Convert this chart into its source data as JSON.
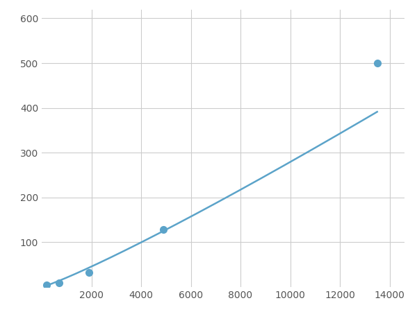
{
  "x_points": [
    200,
    700,
    1900,
    4900,
    13500
  ],
  "y_points": [
    5,
    10,
    32,
    128,
    500
  ],
  "line_color": "#5BA3C9",
  "marker_color": "#5BA3C9",
  "marker_size": 7,
  "xlim": [
    0,
    14600
  ],
  "ylim": [
    0,
    620
  ],
  "xticks": [
    2000,
    4000,
    6000,
    8000,
    10000,
    12000,
    14000
  ],
  "yticks": [
    100,
    200,
    300,
    400,
    500,
    600
  ],
  "grid_color": "#cccccc",
  "background_color": "#ffffff",
  "line_width": 1.8
}
